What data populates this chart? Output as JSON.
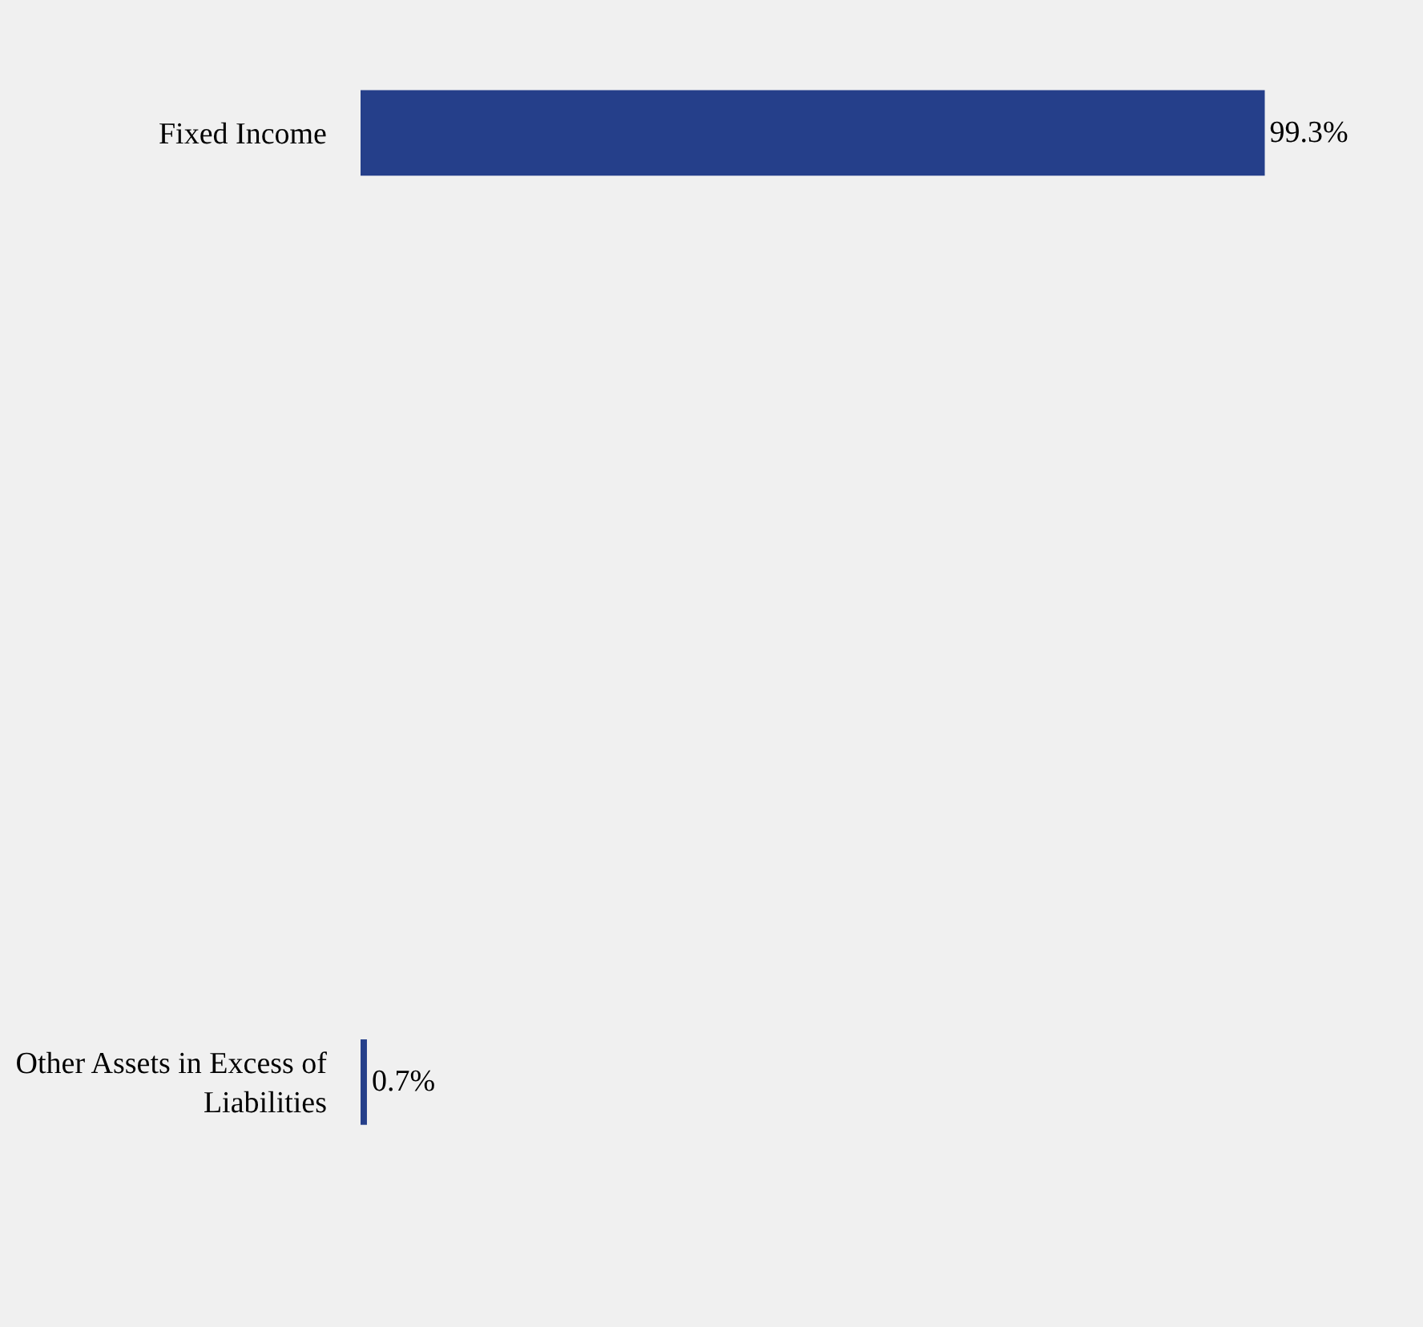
{
  "chart_data": {
    "type": "bar",
    "orientation": "horizontal",
    "categories": [
      "Fixed Income",
      "Other Assets in Excess of Liabilities"
    ],
    "values": [
      99.3,
      0.7
    ],
    "color": "#253f8a",
    "value_labels": [
      "99.3%",
      "0.7%"
    ],
    "grid": false,
    "legend": false
  }
}
